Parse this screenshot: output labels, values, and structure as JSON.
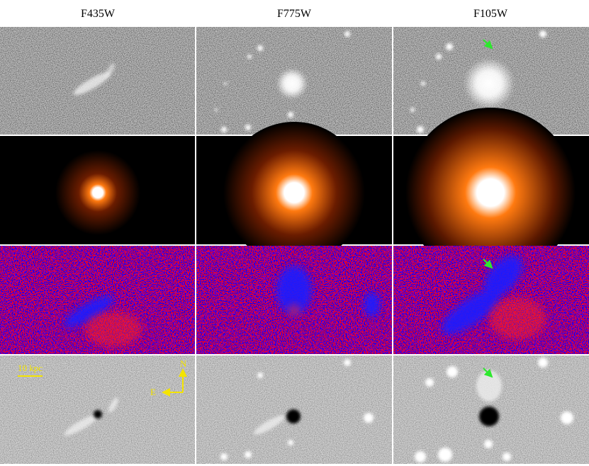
{
  "columns": [
    "F435W",
    "F775W",
    "F105W"
  ],
  "scale_bar": "10 kpc",
  "compass": {
    "north": "N",
    "east": "E"
  }
}
